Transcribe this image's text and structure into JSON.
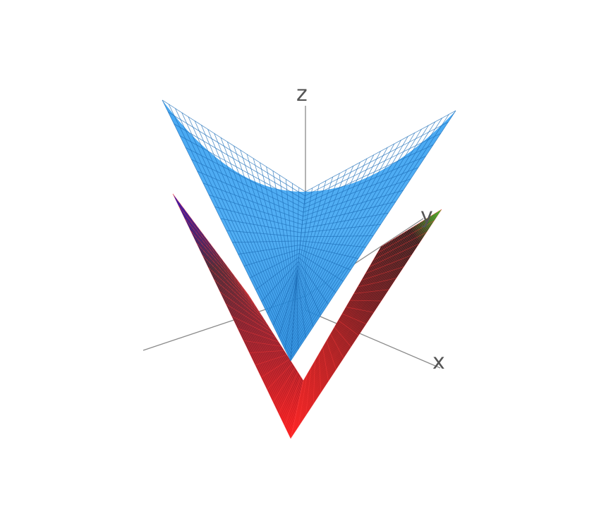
{
  "chart_data": {
    "type": "surface3d",
    "title": "",
    "axes": {
      "x_label": "x",
      "y_label": "y",
      "z_label": "z"
    },
    "grid": false,
    "legend": "none",
    "surfaces": [
      {
        "id": "red-green-blue-surface",
        "shape": "hyperbolic paraboloid (saddle), lower",
        "colorscale": [
          "#ff2b2b",
          "#2a2a2a",
          "#1414d8",
          "#22cc22"
        ],
        "opacity": 1.0
      },
      {
        "id": "blue-surface",
        "shape": "hyperbolic paraboloid (saddle), upper",
        "color": "#1e90e6",
        "opacity": 0.85
      }
    ]
  }
}
